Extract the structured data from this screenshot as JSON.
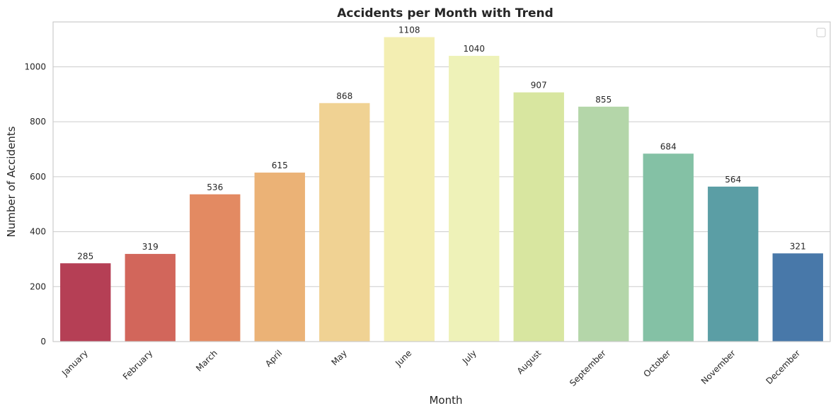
{
  "chart_data": {
    "type": "bar",
    "title": "Accidents per Month with Trend",
    "xlabel": "Month",
    "ylabel": "Number of Accidents",
    "categories": [
      "January",
      "February",
      "March",
      "April",
      "May",
      "June",
      "July",
      "August",
      "September",
      "October",
      "November",
      "December"
    ],
    "values": [
      285,
      319,
      536,
      615,
      868,
      1108,
      1040,
      907,
      855,
      684,
      564,
      321
    ],
    "data_labels": [
      "285",
      "319",
      "536",
      "615",
      "868",
      "1108",
      "1040",
      "907",
      "855",
      "684",
      "564",
      "321"
    ],
    "colors": [
      "#b53f55",
      "#d2665b",
      "#e38a62",
      "#ebb276",
      "#f0d293",
      "#f3eeb2",
      "#eef2b8",
      "#d8e6a0",
      "#b4d6a9",
      "#84c1a5",
      "#5b9ea5",
      "#4878a9"
    ],
    "ylim": [
      0,
      1163.4
    ],
    "yticks": [
      0,
      200,
      400,
      600,
      800,
      1000
    ],
    "ytick_labels": [
      "0",
      "200",
      "400",
      "600",
      "800",
      "1000"
    ],
    "grid": "y",
    "legend": "top-right",
    "legend_entries": []
  }
}
